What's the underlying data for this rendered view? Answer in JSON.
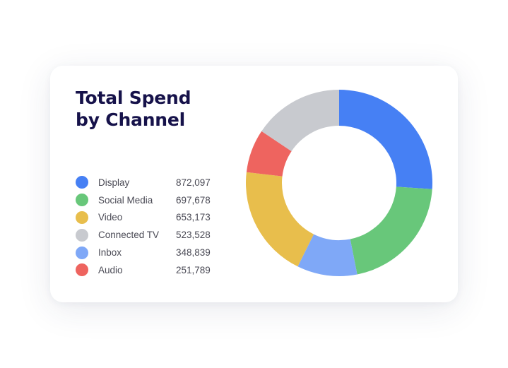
{
  "title_lines": [
    "Total Spend",
    "by Channel"
  ],
  "chart_data": {
    "type": "pie",
    "style": "donut",
    "title": "Total Spend by Channel",
    "categories": [
      "Display",
      "Social Media",
      "Video",
      "Connected TV",
      "Inbox",
      "Audio"
    ],
    "values": [
      872097,
      697678,
      653173,
      523528,
      348839,
      251789
    ],
    "value_labels": [
      "872,097",
      "697,678",
      "653,173",
      "523,528",
      "348,839",
      "251,789"
    ],
    "slice_order_clockwise_from_top": [
      "Display",
      "Social Media",
      "Inbox",
      "Video",
      "Audio",
      "Connected TV"
    ],
    "colors": {
      "Display": "#4680f4",
      "Social Media": "#68c77a",
      "Video": "#e8be4c",
      "Connected TV": "#c8cacf",
      "Inbox": "#7fa8f7",
      "Audio": "#ee645f"
    },
    "legend_position": "left"
  }
}
